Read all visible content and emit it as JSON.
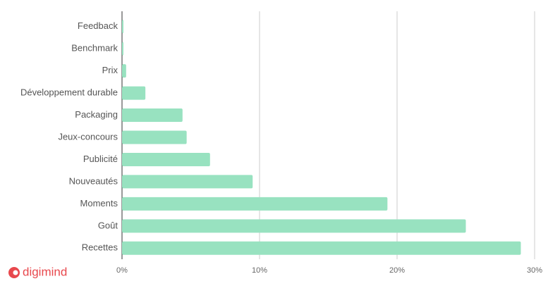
{
  "brand": "digimind",
  "chart_data": {
    "type": "bar",
    "orientation": "horizontal",
    "categories": [
      "Feedback",
      "Benchmark",
      "Prix",
      "Développement durable",
      "Packaging",
      "Jeux-concours",
      "Publicité",
      "Nouveautés",
      "Moments",
      "Goût",
      "Recettes"
    ],
    "values": [
      0.1,
      0.1,
      0.3,
      1.7,
      4.4,
      4.7,
      6.4,
      9.5,
      19.3,
      25.0,
      29.0
    ],
    "color": "#98e2c0",
    "xlim": [
      0,
      30
    ],
    "xticks": [
      {
        "value": 0,
        "label": "0%"
      },
      {
        "value": 10,
        "label": "10%"
      },
      {
        "value": 20,
        "label": "20%"
      },
      {
        "value": 30,
        "label": "30%"
      }
    ],
    "grid": true
  }
}
